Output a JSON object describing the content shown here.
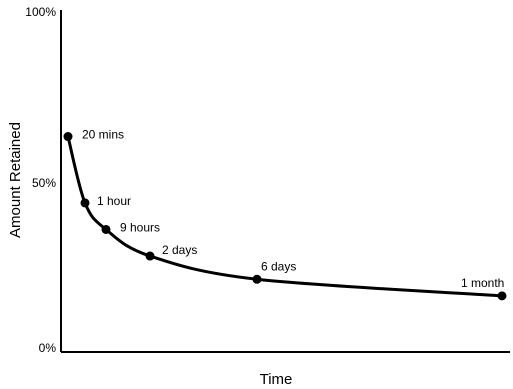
{
  "chart_data": {
    "type": "line",
    "title": "",
    "xlabel": "Time",
    "ylabel": "Amount Retained",
    "ylim": [
      0,
      100
    ],
    "y_ticks": [
      "0%",
      "50%",
      "100%"
    ],
    "y_tick_values": [
      0,
      50,
      100
    ],
    "grid": false,
    "legend": "none",
    "line_color": "#000000",
    "series": [
      {
        "points": [
          {
            "label": "20 mins",
            "value": 64
          },
          {
            "label": "1 hour",
            "value": 44
          },
          {
            "label": "9 hours",
            "value": 36
          },
          {
            "label": "2 days",
            "value": 28
          },
          {
            "label": "6 days",
            "value": 21
          },
          {
            "label": "1 month",
            "value": 16
          }
        ]
      }
    ]
  }
}
